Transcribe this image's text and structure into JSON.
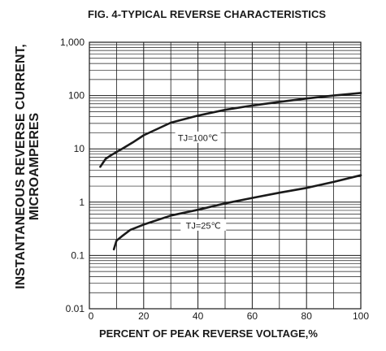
{
  "chart_data": {
    "type": "line",
    "title": "FIG. 4-TYPICAL REVERSE CHARACTERISTICS",
    "xlabel": "PERCENT OF PEAK REVERSE VOLTAGE,%",
    "ylabel_lines": [
      "INSTANTANEOUS REVERSE CURRENT,",
      "MICROAMPERES"
    ],
    "xlim": [
      0,
      100
    ],
    "ylim": [
      0.01,
      1000
    ],
    "yscale": "log",
    "grid": true,
    "x_ticks": [
      "0",
      "20",
      "40",
      "60",
      "80",
      "100"
    ],
    "x_tick_values": [
      0,
      20,
      40,
      60,
      80,
      100
    ],
    "y_ticks": [
      "0.01",
      "0.1",
      "1",
      "10",
      "100",
      "1,000"
    ],
    "y_tick_values": [
      0.01,
      0.1,
      1,
      10,
      100,
      1000
    ],
    "series": [
      {
        "label": "TJ=100℃",
        "x": [
          4,
          6,
          8,
          12,
          16,
          20,
          30,
          40,
          50,
          60,
          70,
          80,
          90,
          100
        ],
        "y": [
          4.6,
          6.5,
          7.6,
          10.0,
          13.2,
          18.0,
          31.0,
          42.0,
          54.0,
          65.0,
          76.0,
          88.0,
          100.0,
          112.0
        ]
      },
      {
        "label": "TJ=25℃",
        "x": [
          9,
          10,
          12,
          15,
          20,
          30,
          40,
          50,
          60,
          70,
          80,
          90,
          100
        ],
        "y": [
          0.13,
          0.19,
          0.23,
          0.3,
          0.38,
          0.56,
          0.72,
          0.95,
          1.2,
          1.5,
          1.85,
          2.4,
          3.2
        ]
      }
    ],
    "annotations": [
      "TJ=100℃",
      "TJ=25℃"
    ]
  }
}
